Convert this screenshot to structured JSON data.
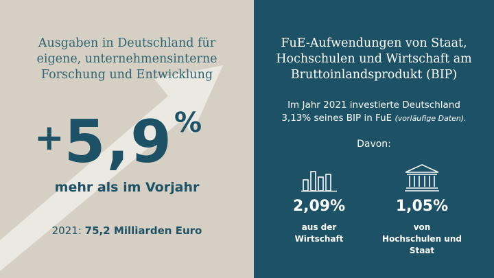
{
  "left": {
    "title_lines": [
      "Ausgaben in Deutschland für",
      "eigene, unternehmensinterne",
      "Forschung und Entwicklung"
    ],
    "big_sign": "+",
    "big_value": "5,9",
    "big_unit": "%",
    "subtitle": "mehr als im Vorjahr",
    "year_label": "2021:",
    "year_value": "75,2 Milliarden Euro"
  },
  "right": {
    "title_lines": [
      "FuE-Aufwendungen von Staat,",
      "Hochschulen und Wirtschaft am",
      "Bruttoinlandsprodukt (BIP)"
    ],
    "desc_line1": "Im Jahr 2021 investierte Deutschland",
    "desc_line2": "3,13% seines BIP in FuE",
    "desc_note": "(vorläufige Daten).",
    "davon": "Davon:",
    "stats": [
      {
        "icon": "bar-chart-icon",
        "value": "2,09%",
        "label_lines": [
          "aus der",
          "Wirtschaft"
        ]
      },
      {
        "icon": "institution-building-icon",
        "value": "1,05%",
        "label_lines": [
          "von",
          "Hochschulen und  Staat"
        ]
      }
    ]
  },
  "colors": {
    "left_bg": "#d6cfc3",
    "right_bg": "#1d5266",
    "accent_teal": "#1d5266",
    "arrow": "#ece9e2"
  }
}
